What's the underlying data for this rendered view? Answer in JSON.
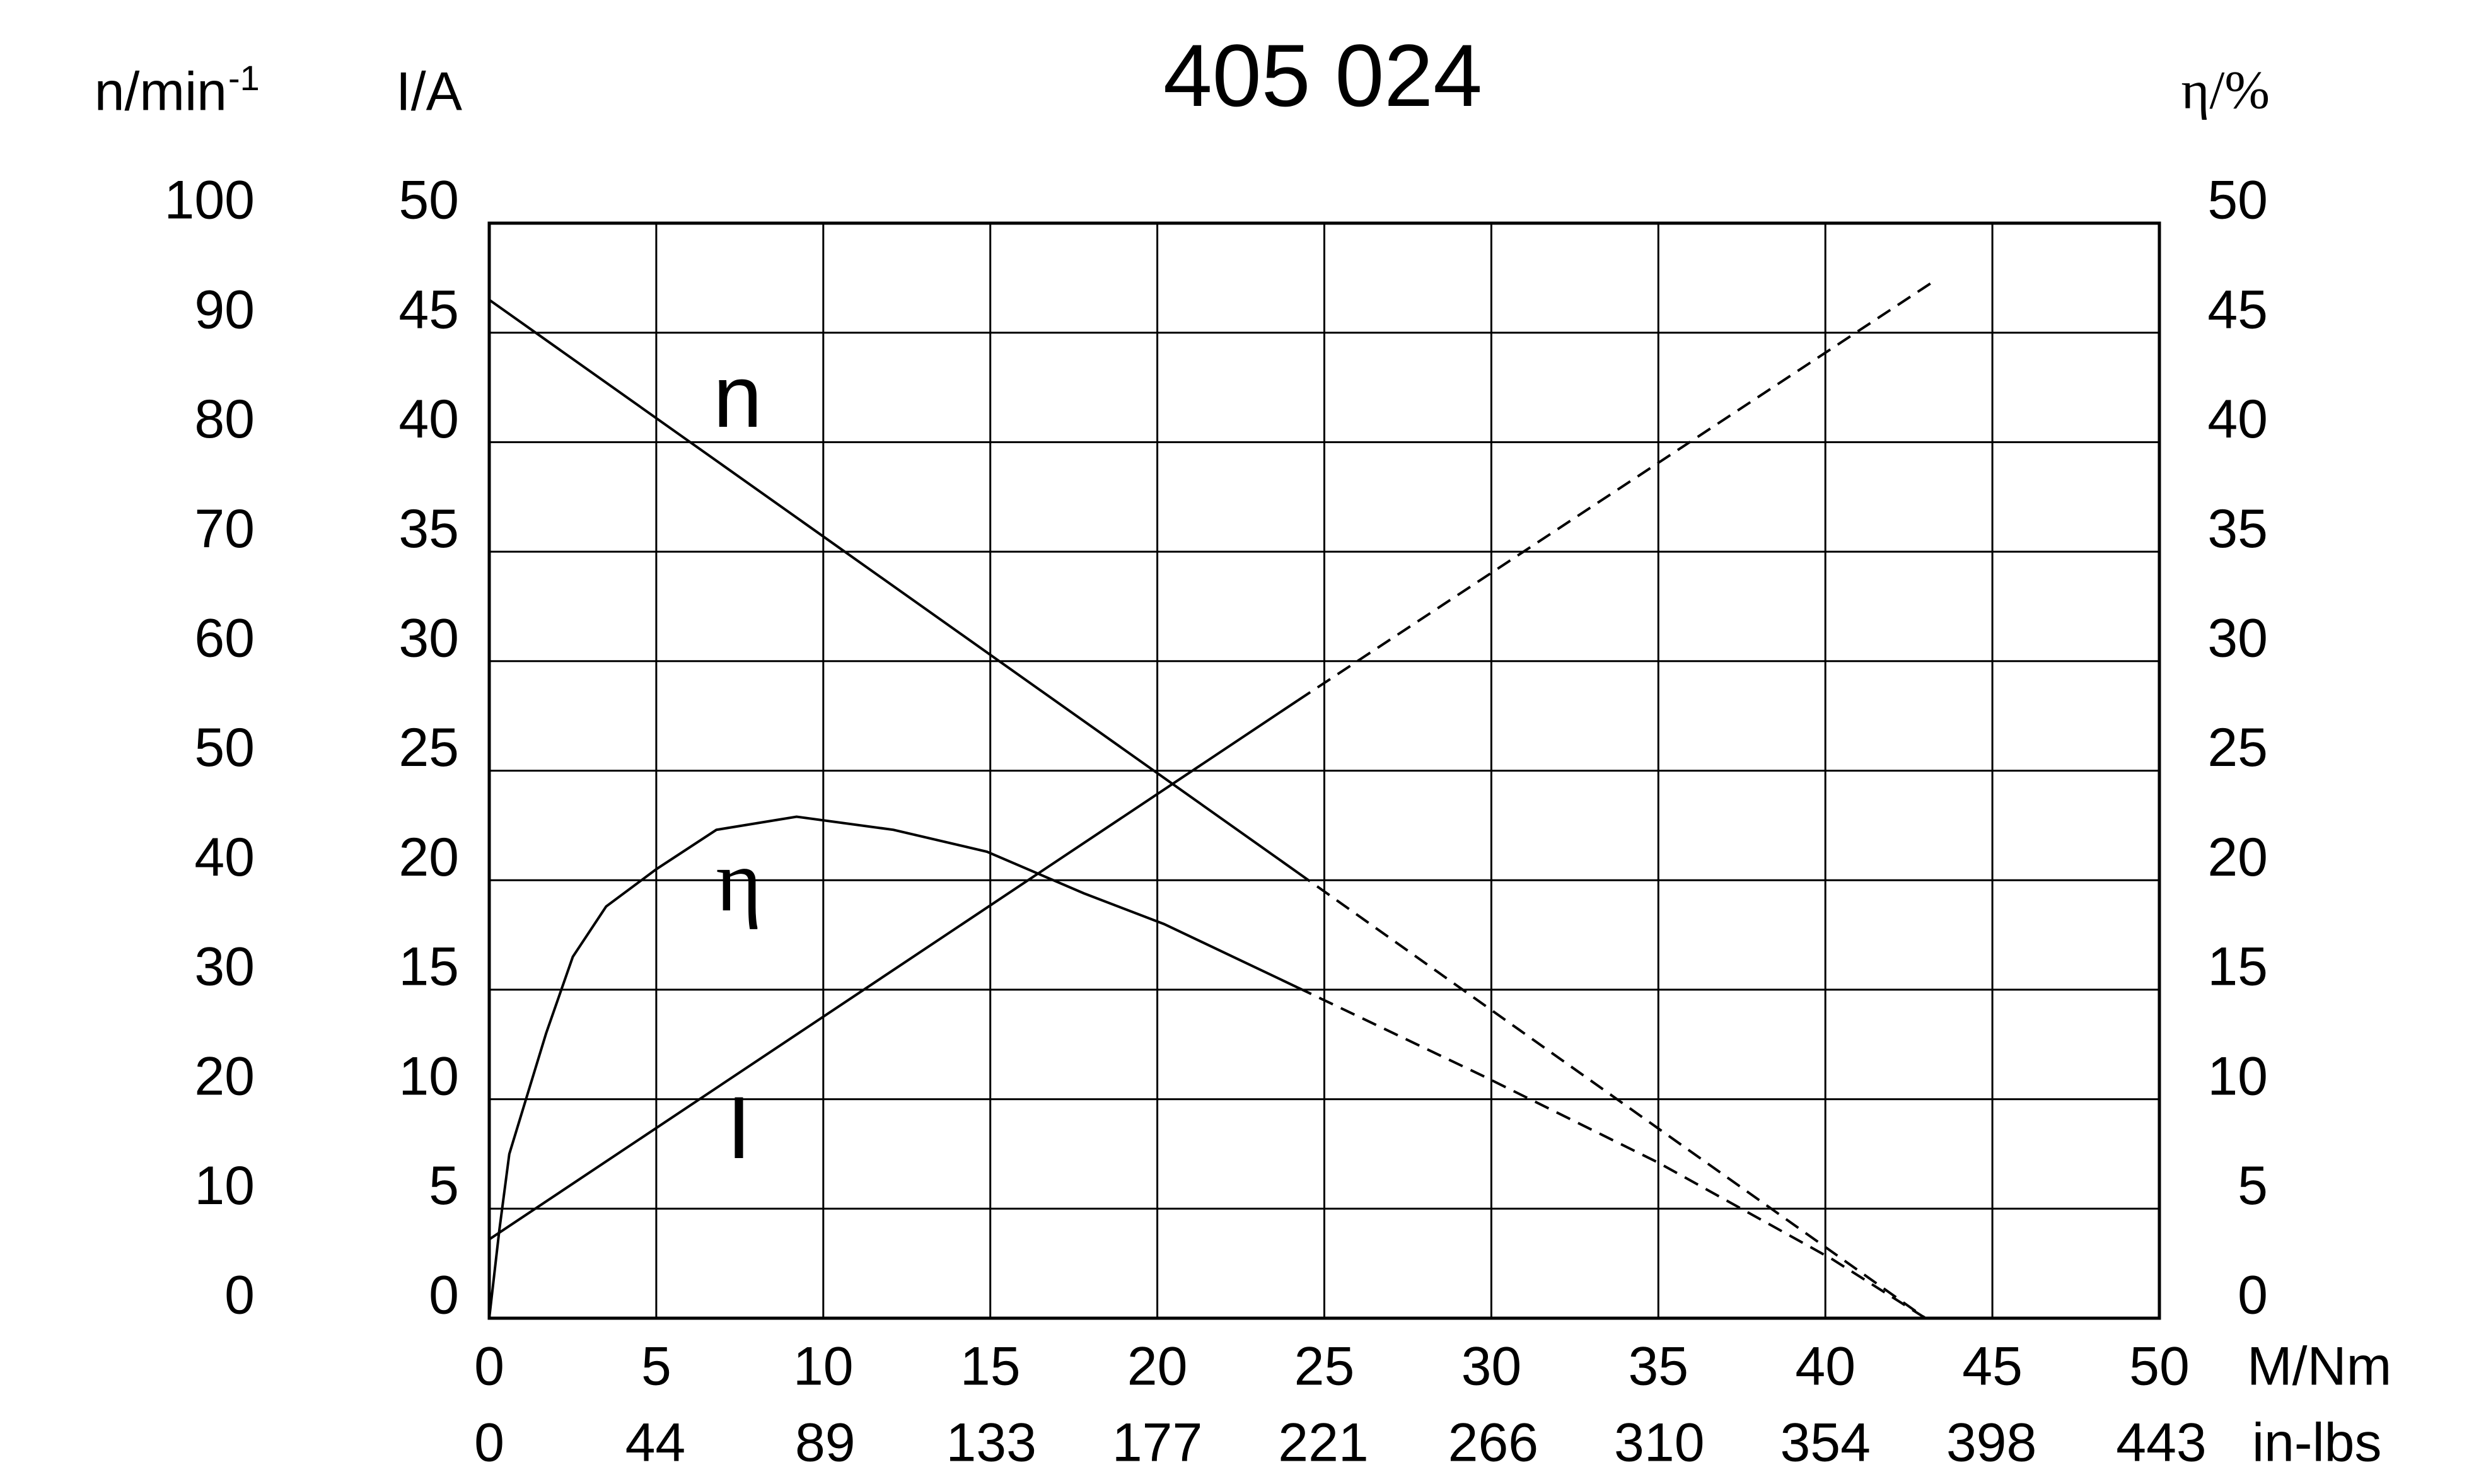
{
  "chart_data": {
    "type": "line",
    "title": "405 024",
    "x_label": "M/Nm",
    "x2_label": "in-lbs",
    "xlim": [
      0,
      50
    ],
    "xticks": [
      0,
      5,
      10,
      15,
      20,
      25,
      30,
      35,
      40,
      45,
      50
    ],
    "x2lim": [
      0,
      442.5
    ],
    "x2ticks": [
      0,
      44,
      89,
      133,
      177,
      221,
      266,
      310,
      354,
      398,
      443
    ],
    "y_label": "I/A",
    "ylim": [
      0,
      50
    ],
    "yticks": [
      0,
      5,
      10,
      15,
      20,
      25,
      30,
      35,
      40,
      45,
      50
    ],
    "y2_label": "η/%",
    "y2lim": [
      0,
      50
    ],
    "y2ticks": [
      0,
      5,
      10,
      15,
      20,
      25,
      30,
      35,
      40,
      45,
      50
    ],
    "y3_label": "n/min",
    "y3_label_sup": "-1",
    "y3lim": [
      0,
      100
    ],
    "y3ticks": [
      0,
      10,
      20,
      30,
      40,
      50,
      60,
      70,
      80,
      90,
      100
    ],
    "grid": true,
    "color": "#000000",
    "series": [
      {
        "name": "n",
        "axis": "y3",
        "segments": [
          {
            "dashed": false,
            "x": [
              0,
              24.2
            ],
            "values": [
              93,
              40.7
            ]
          },
          {
            "dashed": true,
            "x": [
              24.2,
              43
            ],
            "values": [
              40.7,
              0
            ]
          }
        ]
      },
      {
        "name": "η",
        "axis": "y2",
        "segments": [
          {
            "dashed": false,
            "x": [
              0,
              0.3,
              0.6,
              1.1,
              1.7,
              2.5,
              3.5,
              5,
              6.8,
              9.2,
              12.1,
              14.9,
              17.8,
              20.2,
              24.2
            ],
            "values": [
              0,
              4,
              7.5,
              10,
              13,
              16.5,
              18.8,
              20.5,
              22.3,
              22.9,
              22.3,
              21.3,
              19.4,
              18,
              15.1
            ]
          },
          {
            "dashed": true,
            "x": [
              24.2,
              29.7,
              35,
              40.2,
              43
            ],
            "values": [
              15.1,
              11.1,
              7.1,
              2.7,
              0
            ]
          }
        ]
      },
      {
        "name": "I",
        "axis": "y",
        "segments": [
          {
            "dashed": false,
            "x": [
              0,
              24.2
            ],
            "values": [
              3.6,
              28.2
            ]
          },
          {
            "dashed": true,
            "x": [
              24.2,
              43.2
            ],
            "values": [
              28.2,
              47.3
            ]
          }
        ]
      }
    ]
  }
}
